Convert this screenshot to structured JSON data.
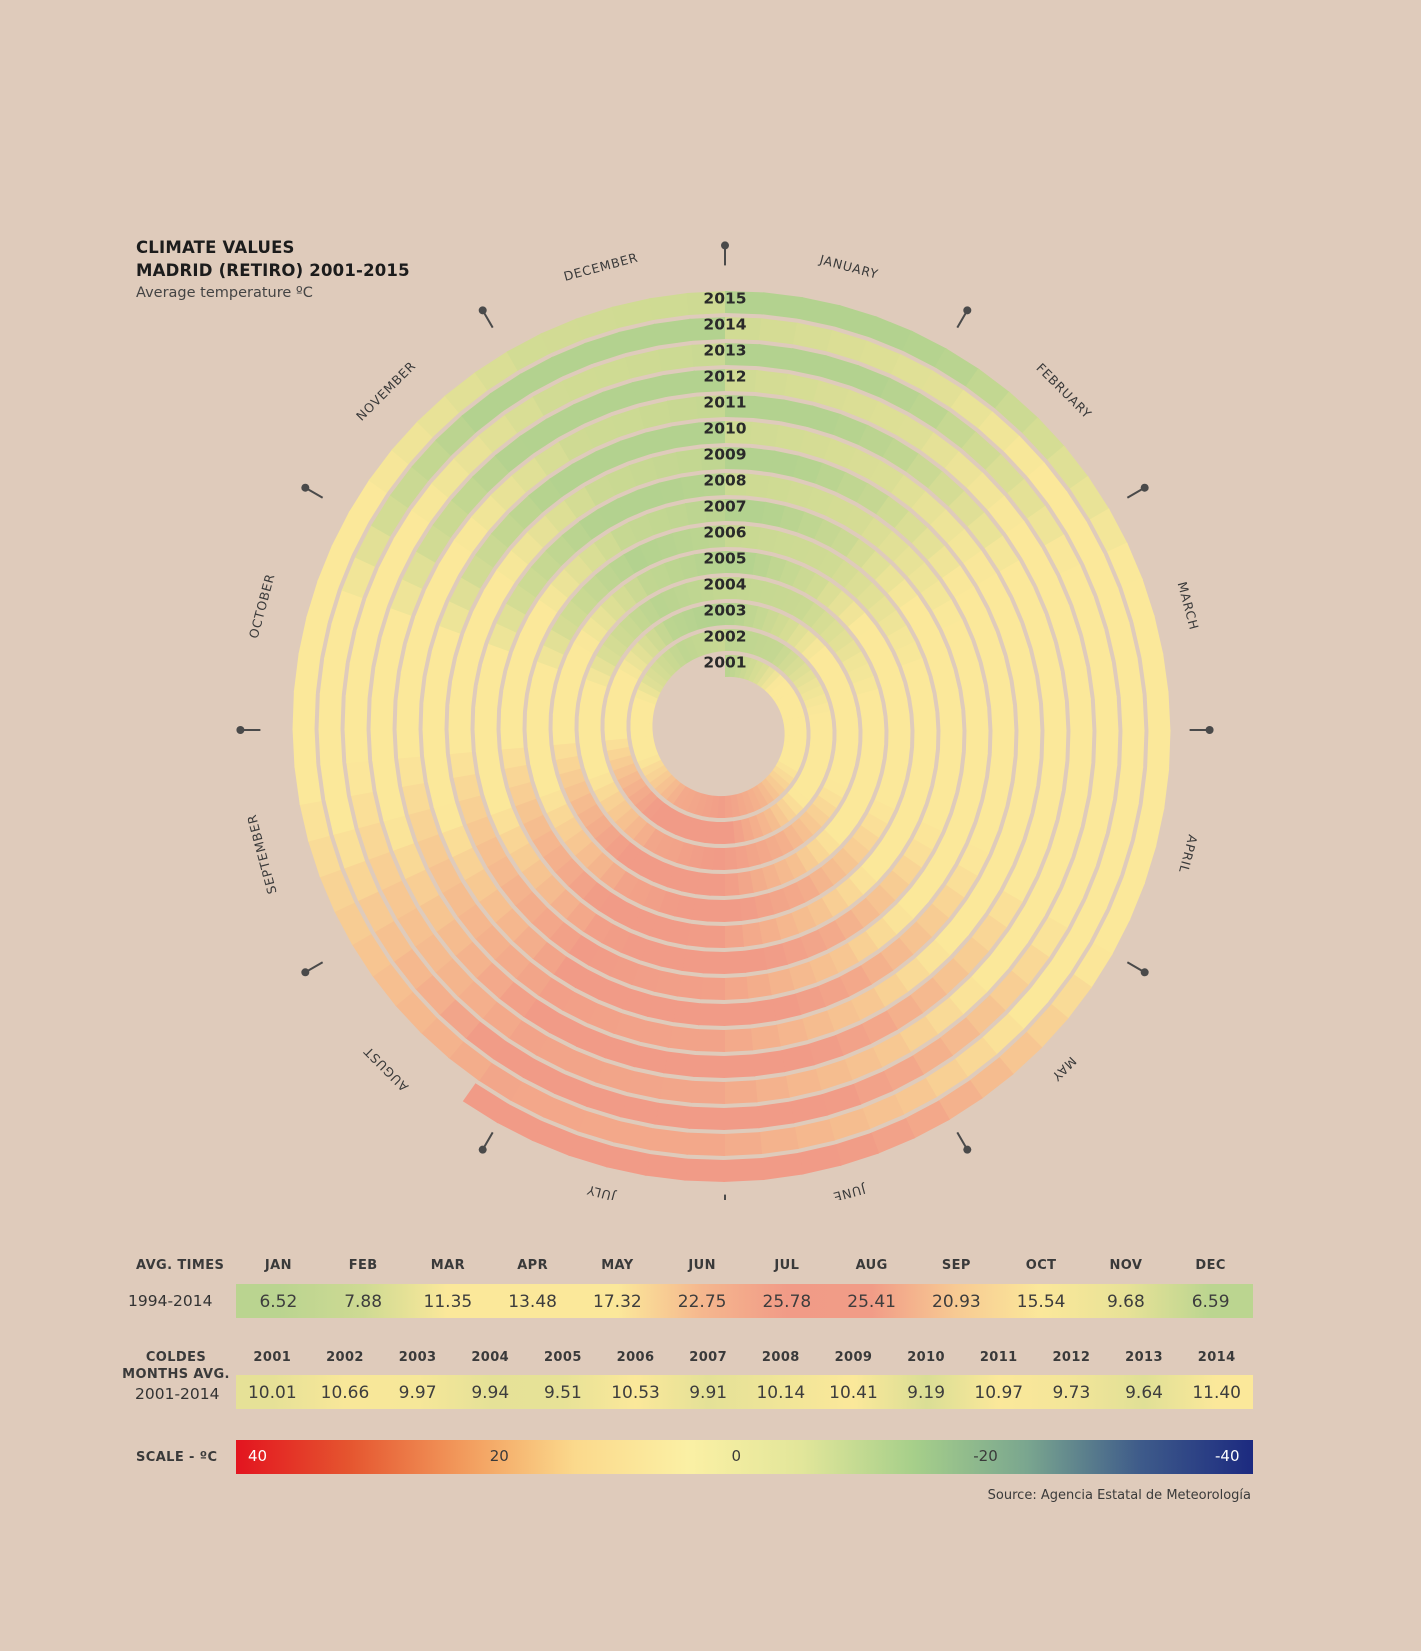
{
  "header": {
    "title_line1": "CLIMATE VALUES",
    "title_line2": "MADRID (RETIRO) 2001-2015",
    "subtitle": "Average temperature ºC"
  },
  "chart_data": {
    "type": "heatmap",
    "layout": "spiral",
    "title": "CLIMATE VALUES MADRID (RETIRO) 2001-2015",
    "subtitle": "Average temperature ºC",
    "months": [
      "JANUARY",
      "FEBRUARY",
      "MARCH",
      "APRIL",
      "MAY",
      "JUNE",
      "JULY",
      "AUGUST",
      "SEPTEMBER",
      "OCTOBER",
      "NOVEMBER",
      "DECEMBER"
    ],
    "years": [
      "2001",
      "2002",
      "2003",
      "2004",
      "2005",
      "2006",
      "2007",
      "2008",
      "2009",
      "2010",
      "2011",
      "2012",
      "2013",
      "2014",
      "2015"
    ],
    "colors": {
      "scale_stops": [
        "#e3141f",
        "#e5552f",
        "#f29a5c",
        "#fbd98c",
        "#fbf0a4",
        "#e2e69a",
        "#a6cf8a",
        "#7aa68f",
        "#3e5b8a",
        "#1c2a80"
      ],
      "cold": "#b3d28f",
      "mild": "#fbe89a",
      "hot": "#f19b87",
      "ring_gap": "#dfcbbb",
      "tick": "#4a4a4a"
    }
  },
  "avg_table": {
    "label": "AVG. TIMES",
    "period": "1994-2014",
    "months": [
      "JAN",
      "FEB",
      "MAR",
      "APR",
      "MAY",
      "JUN",
      "JUL",
      "AUG",
      "SEP",
      "OCT",
      "NOV",
      "DEC"
    ],
    "values": [
      "6.52",
      "7.88",
      "11.35",
      "13.48",
      "17.32",
      "22.75",
      "25.78",
      "25.41",
      "20.93",
      "15.54",
      "9.68",
      "6.59"
    ]
  },
  "coldest_table": {
    "label_line1": "COLDES",
    "label_line2": "MONTHS AVG.",
    "period": "2001-2014",
    "years": [
      "2001",
      "2002",
      "2003",
      "2004",
      "2005",
      "2006",
      "2007",
      "2008",
      "2009",
      "2010",
      "2011",
      "2012",
      "2013",
      "2014"
    ],
    "values": [
      "10.01",
      "10.66",
      "9.97",
      "9.94",
      "9.51",
      "10.53",
      "9.91",
      "10.14",
      "10.41",
      "9.19",
      "10.97",
      "9.73",
      "9.64",
      "11.40"
    ]
  },
  "scale": {
    "label": "SCALE - ºC",
    "ticks": [
      "40",
      "20",
      "0",
      "-20",
      "-40"
    ]
  },
  "source": "Source: Agencia Estatal de Meteorología"
}
